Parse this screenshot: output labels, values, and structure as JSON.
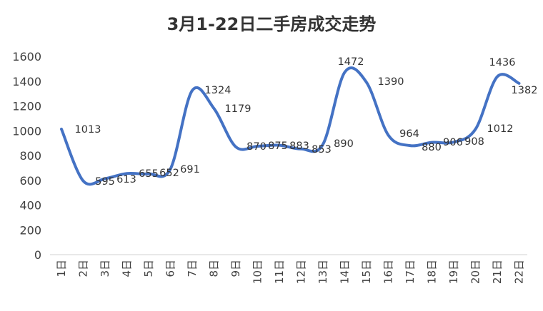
{
  "chart_data": {
    "type": "line",
    "title": "3月1-22日二手房成交走势",
    "xlabel": "",
    "ylabel": "",
    "categories": [
      "1日",
      "2日",
      "3日",
      "4日",
      "5日",
      "6日",
      "7日",
      "8日",
      "9日",
      "10日",
      "11日",
      "12日",
      "13日",
      "14日",
      "15日",
      "16日",
      "17日",
      "18日",
      "19日",
      "20日",
      "21日",
      "22日"
    ],
    "series": [
      {
        "values": [
          1013,
          595,
          613,
          655,
          652,
          691,
          1324,
          1179,
          870,
          875,
          883,
          853,
          890,
          1472,
          1390,
          964,
          880,
          906,
          908,
          1012,
          1436,
          1382
        ],
        "color": "#4472C4"
      }
    ],
    "yticks": [
      "0",
      "200",
      "400",
      "600",
      "800",
      "1000",
      "1200",
      "1400",
      "1600"
    ],
    "ylim": [
      0,
      1600
    ],
    "grid": false,
    "legend": "none",
    "smooth": true
  }
}
